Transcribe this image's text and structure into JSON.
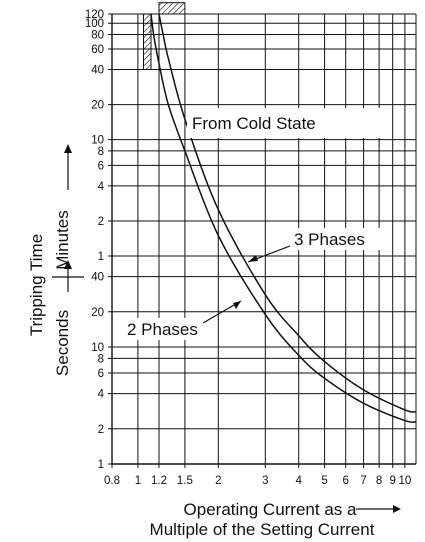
{
  "chart_data": {
    "type": "line",
    "title": "",
    "xlabel_line1": "Operating Current as a",
    "xlabel_line2": "Multiple of the Setting Current",
    "ylabel_minutes": "Minutes",
    "ylabel_seconds": "Seconds",
    "ylabel_main": "Tripping Time",
    "annotation_main": "From Cold State",
    "x_scale": "log",
    "xlim": [
      0.8,
      11
    ],
    "x_ticks": [
      0.8,
      1,
      1.2,
      1.5,
      2,
      3,
      4,
      5,
      6,
      7,
      8,
      9,
      10
    ],
    "x_tick_labels": [
      "0.8",
      "1",
      "1.2",
      "1.5",
      "2",
      "3",
      "4",
      "5",
      "6",
      "7",
      "8",
      "9",
      "10"
    ],
    "y_scale": "log",
    "y_unit_note": "seconds below 60 s, minutes above",
    "y_seconds_ticks": [
      1,
      2,
      4,
      6,
      8,
      10,
      20,
      40
    ],
    "y_seconds_labels": [
      "1",
      "2",
      "4",
      "6",
      "8",
      "10",
      "20",
      "40"
    ],
    "y_minutes_ticks": [
      1,
      2,
      4,
      6,
      8,
      10,
      20,
      40,
      60,
      80,
      100,
      120
    ],
    "y_minutes_labels": [
      "1",
      "2",
      "4",
      "6",
      "8",
      "10",
      "20",
      "40",
      "60",
      "80",
      "100",
      "120"
    ],
    "grid": true,
    "series": [
      {
        "name": "2 Phases",
        "x": [
          1.12,
          1.15,
          1.2,
          1.3,
          1.5,
          2,
          3,
          4,
          5,
          7,
          10,
          11
        ],
        "y_seconds": [
          7200,
          4500,
          2700,
          1200,
          480,
          90,
          19,
          8.5,
          5.4,
          3.3,
          2.35,
          2.3
        ]
      },
      {
        "name": "3 Phases",
        "x": [
          1.2,
          1.25,
          1.3,
          1.5,
          2,
          3,
          4,
          5,
          7,
          10,
          11
        ],
        "y_seconds": [
          7200,
          4500,
          3000,
          900,
          150,
          28,
          12.5,
          7.5,
          4.3,
          2.9,
          2.8
        ]
      }
    ],
    "tolerance_marks": [
      {
        "axis": "x",
        "x_range": [
          1.05,
          1.12
        ],
        "y_seconds_range": [
          2400,
          7200
        ]
      },
      {
        "axis": "y",
        "x_range": [
          1.2,
          1.5
        ],
        "y_seconds_range": [
          7200,
          9000
        ]
      }
    ]
  }
}
